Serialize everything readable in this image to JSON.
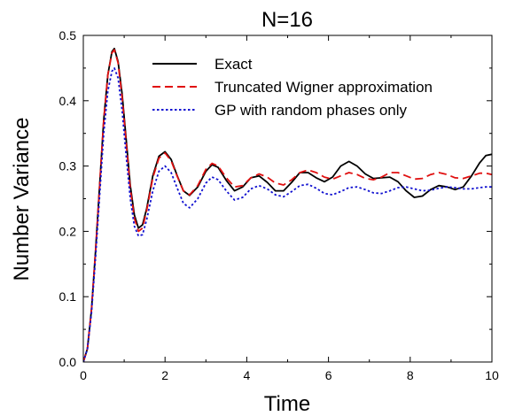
{
  "chart_data": {
    "type": "line",
    "title": "N=16",
    "xlabel": "Time",
    "ylabel": "Number Variance",
    "xlim": [
      0,
      10
    ],
    "ylim": [
      0.0,
      0.5
    ],
    "x_ticks": [
      0,
      2,
      4,
      6,
      8,
      10
    ],
    "x_tick_labels": [
      "0",
      "2",
      "4",
      "6",
      "8",
      "10"
    ],
    "y_ticks": [
      0.0,
      0.1,
      0.2,
      0.3,
      0.4,
      0.5
    ],
    "y_tick_labels": [
      "0.0",
      "0.1",
      "0.2",
      "0.3",
      "0.4",
      "0.5"
    ],
    "grid": false,
    "legend_position": "top-right",
    "series": [
      {
        "name": "Exact",
        "color": "#000000",
        "dash": "solid",
        "points": [
          [
            0,
            0
          ],
          [
            0.1,
            0.02
          ],
          [
            0.2,
            0.08
          ],
          [
            0.3,
            0.17
          ],
          [
            0.4,
            0.27
          ],
          [
            0.5,
            0.37
          ],
          [
            0.6,
            0.44
          ],
          [
            0.7,
            0.475
          ],
          [
            0.76,
            0.48
          ],
          [
            0.85,
            0.46
          ],
          [
            0.95,
            0.41
          ],
          [
            1.05,
            0.34
          ],
          [
            1.15,
            0.27
          ],
          [
            1.25,
            0.225
          ],
          [
            1.35,
            0.205
          ],
          [
            1.45,
            0.21
          ],
          [
            1.55,
            0.235
          ],
          [
            1.7,
            0.285
          ],
          [
            1.85,
            0.315
          ],
          [
            2.0,
            0.322
          ],
          [
            2.15,
            0.31
          ],
          [
            2.3,
            0.285
          ],
          [
            2.45,
            0.262
          ],
          [
            2.6,
            0.255
          ],
          [
            2.8,
            0.268
          ],
          [
            3.0,
            0.292
          ],
          [
            3.15,
            0.302
          ],
          [
            3.3,
            0.298
          ],
          [
            3.5,
            0.278
          ],
          [
            3.7,
            0.262
          ],
          [
            3.9,
            0.268
          ],
          [
            4.1,
            0.282
          ],
          [
            4.3,
            0.285
          ],
          [
            4.5,
            0.275
          ],
          [
            4.7,
            0.262
          ],
          [
            4.9,
            0.262
          ],
          [
            5.1,
            0.275
          ],
          [
            5.3,
            0.29
          ],
          [
            5.5,
            0.29
          ],
          [
            5.7,
            0.282
          ],
          [
            5.9,
            0.276
          ],
          [
            6.1,
            0.283
          ],
          [
            6.3,
            0.3
          ],
          [
            6.5,
            0.307
          ],
          [
            6.7,
            0.3
          ],
          [
            6.9,
            0.288
          ],
          [
            7.1,
            0.281
          ],
          [
            7.3,
            0.282
          ],
          [
            7.5,
            0.283
          ],
          [
            7.7,
            0.276
          ],
          [
            7.9,
            0.262
          ],
          [
            8.1,
            0.252
          ],
          [
            8.3,
            0.254
          ],
          [
            8.5,
            0.264
          ],
          [
            8.7,
            0.27
          ],
          [
            8.9,
            0.268
          ],
          [
            9.1,
            0.264
          ],
          [
            9.3,
            0.268
          ],
          [
            9.5,
            0.285
          ],
          [
            9.7,
            0.305
          ],
          [
            9.85,
            0.316
          ],
          [
            10.0,
            0.318
          ]
        ]
      },
      {
        "name": "Truncated Wigner approximation",
        "color": "#e01010",
        "dash": "dashed",
        "points": [
          [
            0,
            0
          ],
          [
            0.1,
            0.02
          ],
          [
            0.2,
            0.08
          ],
          [
            0.3,
            0.17
          ],
          [
            0.4,
            0.27
          ],
          [
            0.5,
            0.37
          ],
          [
            0.6,
            0.44
          ],
          [
            0.7,
            0.473
          ],
          [
            0.76,
            0.478
          ],
          [
            0.85,
            0.458
          ],
          [
            0.95,
            0.405
          ],
          [
            1.05,
            0.335
          ],
          [
            1.15,
            0.265
          ],
          [
            1.25,
            0.22
          ],
          [
            1.35,
            0.2
          ],
          [
            1.45,
            0.205
          ],
          [
            1.55,
            0.232
          ],
          [
            1.7,
            0.282
          ],
          [
            1.85,
            0.312
          ],
          [
            2.0,
            0.32
          ],
          [
            2.15,
            0.308
          ],
          [
            2.3,
            0.284
          ],
          [
            2.45,
            0.262
          ],
          [
            2.6,
            0.256
          ],
          [
            2.8,
            0.27
          ],
          [
            3.0,
            0.295
          ],
          [
            3.15,
            0.304
          ],
          [
            3.3,
            0.3
          ],
          [
            3.5,
            0.282
          ],
          [
            3.7,
            0.268
          ],
          [
            3.9,
            0.27
          ],
          [
            4.1,
            0.282
          ],
          [
            4.3,
            0.288
          ],
          [
            4.5,
            0.283
          ],
          [
            4.7,
            0.274
          ],
          [
            4.9,
            0.271
          ],
          [
            5.1,
            0.279
          ],
          [
            5.3,
            0.29
          ],
          [
            5.5,
            0.294
          ],
          [
            5.7,
            0.29
          ],
          [
            5.9,
            0.283
          ],
          [
            6.1,
            0.28
          ],
          [
            6.3,
            0.285
          ],
          [
            6.5,
            0.29
          ],
          [
            6.7,
            0.287
          ],
          [
            6.9,
            0.281
          ],
          [
            7.1,
            0.279
          ],
          [
            7.3,
            0.283
          ],
          [
            7.5,
            0.29
          ],
          [
            7.7,
            0.29
          ],
          [
            7.9,
            0.285
          ],
          [
            8.1,
            0.28
          ],
          [
            8.3,
            0.281
          ],
          [
            8.5,
            0.287
          ],
          [
            8.7,
            0.29
          ],
          [
            8.9,
            0.287
          ],
          [
            9.1,
            0.282
          ],
          [
            9.3,
            0.281
          ],
          [
            9.5,
            0.285
          ],
          [
            9.7,
            0.289
          ],
          [
            9.85,
            0.289
          ],
          [
            10.0,
            0.287
          ]
        ]
      },
      {
        "name": "GP with random phases only",
        "color": "#1010d0",
        "dash": "dotted",
        "points": [
          [
            0,
            0
          ],
          [
            0.1,
            0.02
          ],
          [
            0.2,
            0.075
          ],
          [
            0.3,
            0.16
          ],
          [
            0.4,
            0.255
          ],
          [
            0.5,
            0.35
          ],
          [
            0.6,
            0.415
          ],
          [
            0.7,
            0.445
          ],
          [
            0.76,
            0.45
          ],
          [
            0.85,
            0.435
          ],
          [
            0.95,
            0.385
          ],
          [
            1.05,
            0.315
          ],
          [
            1.15,
            0.25
          ],
          [
            1.25,
            0.208
          ],
          [
            1.35,
            0.193
          ],
          [
            1.45,
            0.195
          ],
          [
            1.55,
            0.218
          ],
          [
            1.7,
            0.262
          ],
          [
            1.85,
            0.292
          ],
          [
            2.0,
            0.3
          ],
          [
            2.15,
            0.29
          ],
          [
            2.3,
            0.266
          ],
          [
            2.45,
            0.243
          ],
          [
            2.6,
            0.236
          ],
          [
            2.8,
            0.25
          ],
          [
            3.0,
            0.274
          ],
          [
            3.15,
            0.283
          ],
          [
            3.3,
            0.279
          ],
          [
            3.5,
            0.262
          ],
          [
            3.7,
            0.248
          ],
          [
            3.9,
            0.252
          ],
          [
            4.1,
            0.265
          ],
          [
            4.3,
            0.27
          ],
          [
            4.5,
            0.265
          ],
          [
            4.7,
            0.256
          ],
          [
            4.9,
            0.253
          ],
          [
            5.1,
            0.261
          ],
          [
            5.3,
            0.27
          ],
          [
            5.5,
            0.272
          ],
          [
            5.7,
            0.266
          ],
          [
            5.9,
            0.258
          ],
          [
            6.1,
            0.256
          ],
          [
            6.3,
            0.261
          ],
          [
            6.5,
            0.267
          ],
          [
            6.7,
            0.268
          ],
          [
            6.9,
            0.264
          ],
          [
            7.1,
            0.259
          ],
          [
            7.3,
            0.258
          ],
          [
            7.5,
            0.262
          ],
          [
            7.7,
            0.267
          ],
          [
            7.9,
            0.268
          ],
          [
            8.1,
            0.265
          ],
          [
            8.3,
            0.262
          ],
          [
            8.5,
            0.263
          ],
          [
            8.7,
            0.266
          ],
          [
            8.9,
            0.268
          ],
          [
            9.1,
            0.267
          ],
          [
            9.3,
            0.265
          ],
          [
            9.5,
            0.265
          ],
          [
            9.7,
            0.267
          ],
          [
            9.85,
            0.268
          ],
          [
            10.0,
            0.268
          ]
        ]
      }
    ]
  }
}
